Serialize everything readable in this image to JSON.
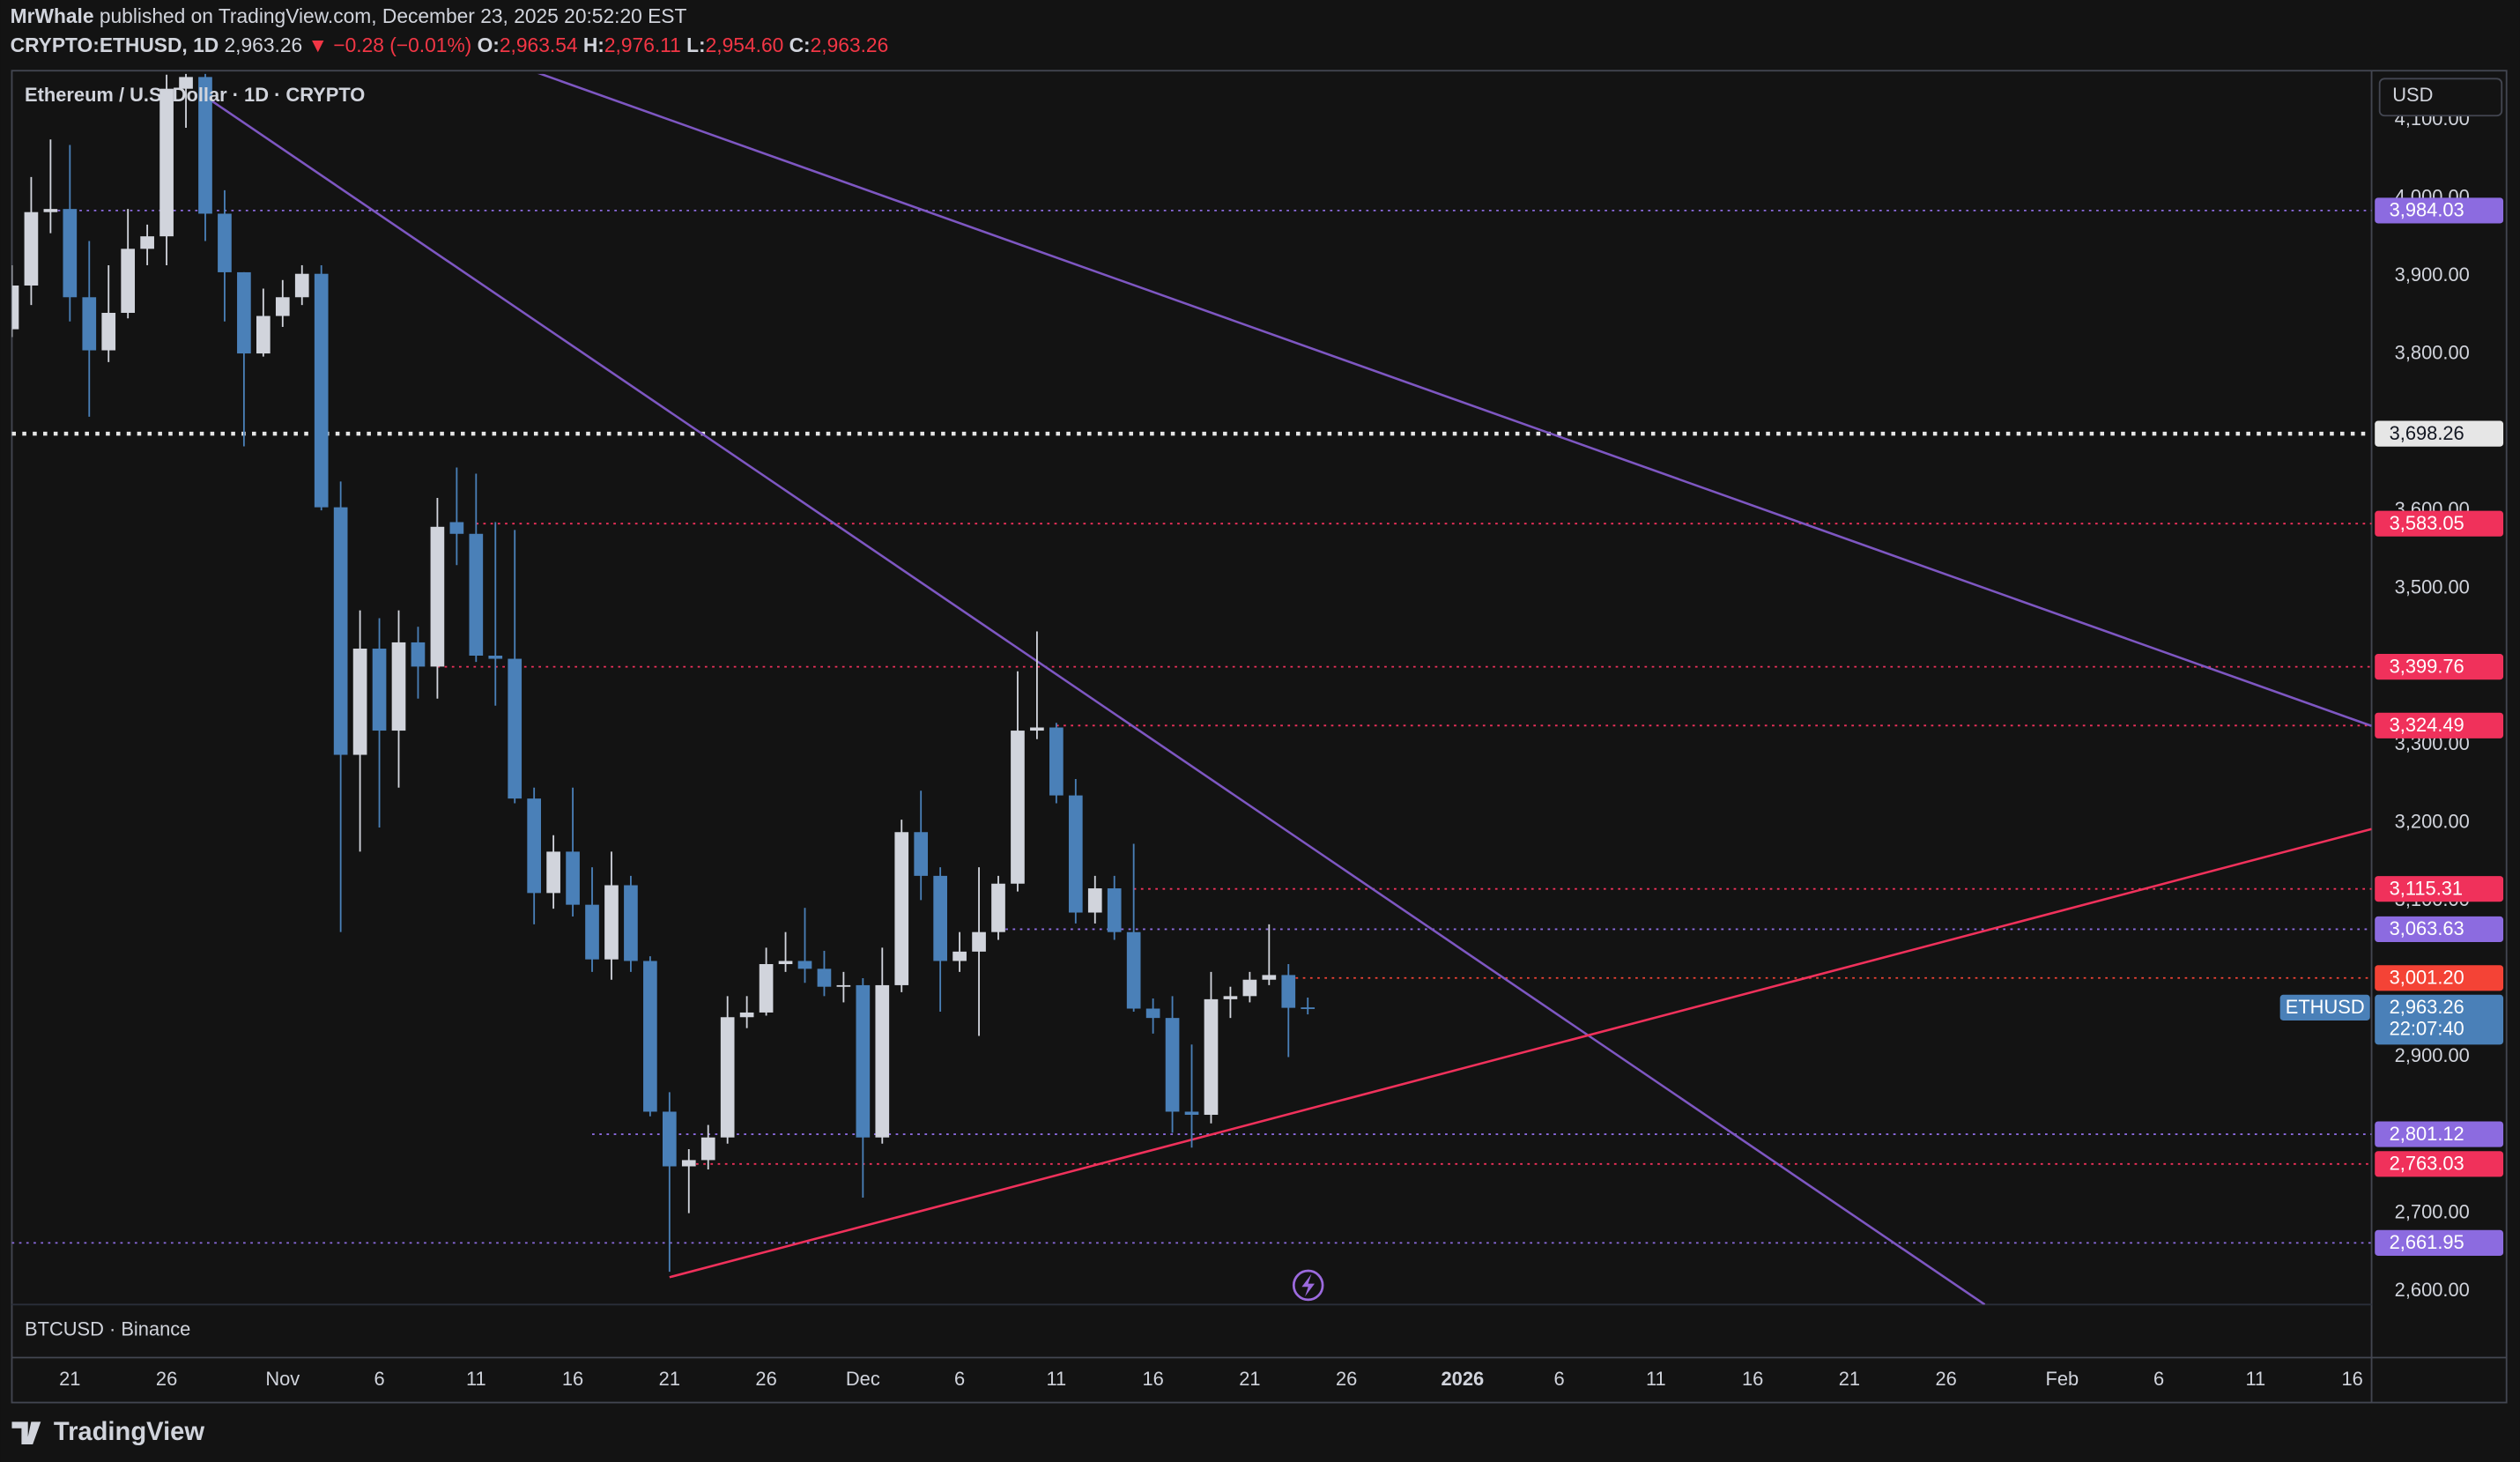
{
  "header": {
    "author": "MrWhale",
    "published": "published on TradingView.com, December 23, 2025 20:52:20 EST",
    "symbol": "CRYPTO:ETHUSD, 1D",
    "last": "2,963.26",
    "change": "▼ −0.28 (−0.01%)",
    "ohlc": [
      {
        "key": "O:",
        "value": "2,963.54"
      },
      {
        "key": "H:",
        "value": "2,976.11"
      },
      {
        "key": "L:",
        "value": "2,954.60"
      },
      {
        "key": "C:",
        "value": "2,963.26"
      }
    ]
  },
  "chart_data": {
    "type": "candlestick",
    "title": "Ethereum / U.S. Dollar · 1D · CRYPTO",
    "currency": "USD",
    "up_color": "#d1d4dc",
    "down_color": "#4a80b8",
    "x": [
      "2025-10-18",
      "2025-10-19",
      "2025-10-20",
      "2025-10-21",
      "2025-10-22",
      "2025-10-23",
      "2025-10-24",
      "2025-10-25",
      "2025-10-26",
      "2025-10-27",
      "2025-10-28",
      "2025-10-29",
      "2025-10-30",
      "2025-10-31",
      "2025-11-01",
      "2025-11-02",
      "2025-11-03",
      "2025-11-04",
      "2025-11-05",
      "2025-11-06",
      "2025-11-07",
      "2025-11-08",
      "2025-11-09",
      "2025-11-10",
      "2025-11-11",
      "2025-11-12",
      "2025-11-13",
      "2025-11-14",
      "2025-11-15",
      "2025-11-16",
      "2025-11-17",
      "2025-11-18",
      "2025-11-19",
      "2025-11-20",
      "2025-11-21",
      "2025-11-22",
      "2025-11-23",
      "2025-11-24",
      "2025-11-25",
      "2025-11-26",
      "2025-11-27",
      "2025-11-28",
      "2025-11-29",
      "2025-11-30",
      "2025-12-01",
      "2025-12-02",
      "2025-12-03",
      "2025-12-04",
      "2025-12-05",
      "2025-12-06",
      "2025-12-07",
      "2025-12-08",
      "2025-12-09",
      "2025-12-10",
      "2025-12-11",
      "2025-12-12",
      "2025-12-13",
      "2025-12-14",
      "2025-12-15",
      "2025-12-16",
      "2025-12-17",
      "2025-12-18",
      "2025-12-19",
      "2025-12-20",
      "2025-12-21",
      "2025-12-22",
      "2025-12-23",
      "2025-12-24"
    ],
    "open": [
      3832,
      3888,
      3982,
      3986,
      3873,
      3805,
      3853,
      3935,
      3951,
      4140,
      4155,
      3980,
      3905,
      3801,
      3849,
      3873,
      3903,
      3604,
      3287,
      3423,
      3318,
      3431,
      3400,
      3585,
      3570,
      3414,
      3410,
      3231,
      3110,
      3163,
      3095,
      3025,
      3120,
      3023,
      2830,
      2760,
      2768,
      2797,
      2951,
      2957,
      3019,
      3023,
      3013,
      2990,
      2992,
      2797,
      2992,
      3188,
      3132,
      3023,
      3035,
      3060,
      3122,
      3318,
      3322,
      3235,
      3085,
      3116,
      3060,
      2962,
      2950,
      2830,
      2826,
      2974,
      2978,
      2999,
      3005,
      2963.54
    ],
    "high": [
      3914,
      4027,
      4075,
      4068,
      3945,
      3914,
      3986,
      3966,
      4158,
      4170,
      4160,
      4010,
      3905,
      3884,
      3895,
      3914,
      3914,
      3637,
      3472,
      3462,
      3472,
      3451,
      3616,
      3655,
      3647,
      3585,
      3575,
      3245,
      3184,
      3245,
      3143,
      3163,
      3132,
      3029,
      2855,
      2782,
      2813,
      2978,
      2978,
      3040,
      3060,
      3091,
      3036,
      3009,
      3001,
      3040,
      3204,
      3241,
      3143,
      3060,
      3143,
      3132,
      3394,
      3445,
      3328,
      3256,
      3132,
      3132,
      3173,
      2975,
      2978,
      2916,
      3009,
      2990,
      3009,
      3070,
      3019,
      2976.11
    ],
    "low": [
      3822,
      3863,
      3955,
      3842,
      3720,
      3790,
      3846,
      3914,
      3914,
      4090,
      3945,
      3842,
      3682,
      3797,
      3835,
      3863,
      3600,
      3060,
      3163,
      3194,
      3245,
      3359,
      3359,
      3530,
      3406,
      3350,
      3225,
      3070,
      3090,
      3080,
      3009,
      2999,
      3009,
      2824,
      2625,
      2700,
      2756,
      2789,
      2937,
      2953,
      3009,
      2995,
      2978,
      2970,
      2720,
      2789,
      2983,
      3101,
      2958,
      3009,
      2927,
      3050,
      3112,
      3307,
      3225,
      3071,
      3071,
      3050,
      2958,
      2930,
      2803,
      2784,
      2815,
      2950,
      2970,
      2992,
      2900,
      2954.6
    ],
    "close": [
      3888,
      3982,
      3986,
      3873,
      3805,
      3853,
      3935,
      3951,
      4140,
      4155,
      3980,
      3905,
      3801,
      3849,
      3873,
      3903,
      3604,
      3287,
      3423,
      3318,
      3431,
      3400,
      3579,
      3570,
      3414,
      3410,
      3231,
      3110,
      3163,
      3095,
      3025,
      3120,
      3023,
      2830,
      2760,
      2768,
      2797,
      2951,
      2957,
      3019,
      3023,
      3013,
      2990,
      2992,
      2797,
      2992,
      3188,
      3132,
      3023,
      3035,
      3060,
      3122,
      3318,
      3322,
      3235,
      3085,
      3116,
      3060,
      2962,
      2950,
      2830,
      2826,
      2974,
      2978,
      2999,
      3005,
      2963,
      2963.26
    ],
    "xlim": [
      "2025-10-18",
      "2026-02-17"
    ],
    "xticks": [
      {
        "value": "2025-10-21",
        "label": "21"
      },
      {
        "value": "2025-10-26",
        "label": "26"
      },
      {
        "value": "2025-11-01",
        "label": "Nov"
      },
      {
        "value": "2025-11-06",
        "label": "6"
      },
      {
        "value": "2025-11-11",
        "label": "11"
      },
      {
        "value": "2025-11-16",
        "label": "16"
      },
      {
        "value": "2025-11-21",
        "label": "21"
      },
      {
        "value": "2025-11-26",
        "label": "26"
      },
      {
        "value": "2025-12-01",
        "label": "Dec"
      },
      {
        "value": "2025-12-06",
        "label": "6"
      },
      {
        "value": "2025-12-11",
        "label": "11"
      },
      {
        "value": "2025-12-16",
        "label": "16"
      },
      {
        "value": "2025-12-21",
        "label": "21"
      },
      {
        "value": "2025-12-26",
        "label": "26"
      },
      {
        "value": "2026-01-01",
        "label": "2026",
        "bold": true
      },
      {
        "value": "2026-01-06",
        "label": "6"
      },
      {
        "value": "2026-01-11",
        "label": "11"
      },
      {
        "value": "2026-01-16",
        "label": "16"
      },
      {
        "value": "2026-01-21",
        "label": "21"
      },
      {
        "value": "2026-01-26",
        "label": "26"
      },
      {
        "value": "2026-02-01",
        "label": "Feb"
      },
      {
        "value": "2026-02-06",
        "label": "6"
      },
      {
        "value": "2026-02-11",
        "label": "11"
      },
      {
        "value": "2026-02-16",
        "label": "16"
      }
    ],
    "ylim": [
      2583,
      4159
    ],
    "yticks": [
      {
        "value": 2600,
        "label": "2,600.00"
      },
      {
        "value": 2700,
        "label": "2,700.00"
      },
      {
        "value": 2800,
        "label": "2,800.00"
      },
      {
        "value": 2900,
        "label": "2,900.00"
      },
      {
        "value": 3000,
        "label": "3,000.00"
      },
      {
        "value": 3100,
        "label": "3,100.00"
      },
      {
        "value": 3200,
        "label": "3,200.00"
      },
      {
        "value": 3300,
        "label": "3,300.00"
      },
      {
        "value": 3400,
        "label": "3,400.00"
      },
      {
        "value": 3500,
        "label": "3,500.00"
      },
      {
        "value": 3600,
        "label": "3,600.00"
      },
      {
        "value": 3700,
        "label": "3,700.00"
      },
      {
        "value": 3800,
        "label": "3,800.00"
      },
      {
        "value": 3900,
        "label": "3,900.00"
      },
      {
        "value": 4000,
        "label": "4,000.00"
      },
      {
        "value": 4100,
        "label": "4,100.00"
      }
    ],
    "levels": [
      {
        "value": 3984.03,
        "label": "3,984.03",
        "color": "#8c6be0",
        "from": "2025-10-20"
      },
      {
        "value": 3698.26,
        "label": "3,698.26",
        "color": "#e6e6e6",
        "text_color": "#131722",
        "from": "2025-10-18"
      },
      {
        "value": 3583.05,
        "label": "3,583.05",
        "color": "#f0315b",
        "from": "2025-11-11"
      },
      {
        "value": 3399.76,
        "label": "3,399.76",
        "color": "#f0315b",
        "from": "2025-11-09"
      },
      {
        "value": 3324.49,
        "label": "3,324.49",
        "color": "#f0315b",
        "from": "2025-12-11"
      },
      {
        "value": 3115.31,
        "label": "3,115.31",
        "color": "#f0315b",
        "from": "2025-12-15"
      },
      {
        "value": 3063.63,
        "label": "3,063.63",
        "color": "#8c6be0",
        "from": "2025-12-08"
      },
      {
        "value": 3001.2,
        "label": "3,001.20",
        "color": "#f44336",
        "from": "2025-12-23"
      },
      {
        "value": 2801.12,
        "label": "2,801.12",
        "color": "#8c6be0",
        "from": "2025-11-17"
      },
      {
        "value": 2763.03,
        "label": "2,763.03",
        "color": "#f0315b",
        "from": "2025-11-22"
      },
      {
        "value": 2661.95,
        "label": "2,661.95",
        "color": "#8c6be0",
        "from": "2025-10-18"
      }
    ],
    "last_price": {
      "symbol": "ETHUSD",
      "value": 2963.26,
      "label": "2,963.26",
      "countdown": "22:07:40",
      "color": "#4a80b8"
    },
    "trendlines": [
      {
        "color": "#7e57c2",
        "points": [
          {
            "x": "2025-10-28",
            "y": 4130
          },
          {
            "x": "2026-01-28",
            "y": 2583
          }
        ]
      },
      {
        "color": "#7e57c2",
        "points": [
          {
            "x": "2025-11-14",
            "y": 4162
          },
          {
            "x": "2026-02-17",
            "y": 3324
          }
        ]
      },
      {
        "color": "#f0315b",
        "points": [
          {
            "x": "2025-11-21",
            "y": 2618
          },
          {
            "x": "2026-02-17",
            "y": 3192
          }
        ]
      }
    ]
  },
  "lower_pane": {
    "label": "BTCUSD · Binance"
  },
  "footer": {
    "brand": "TradingView"
  }
}
